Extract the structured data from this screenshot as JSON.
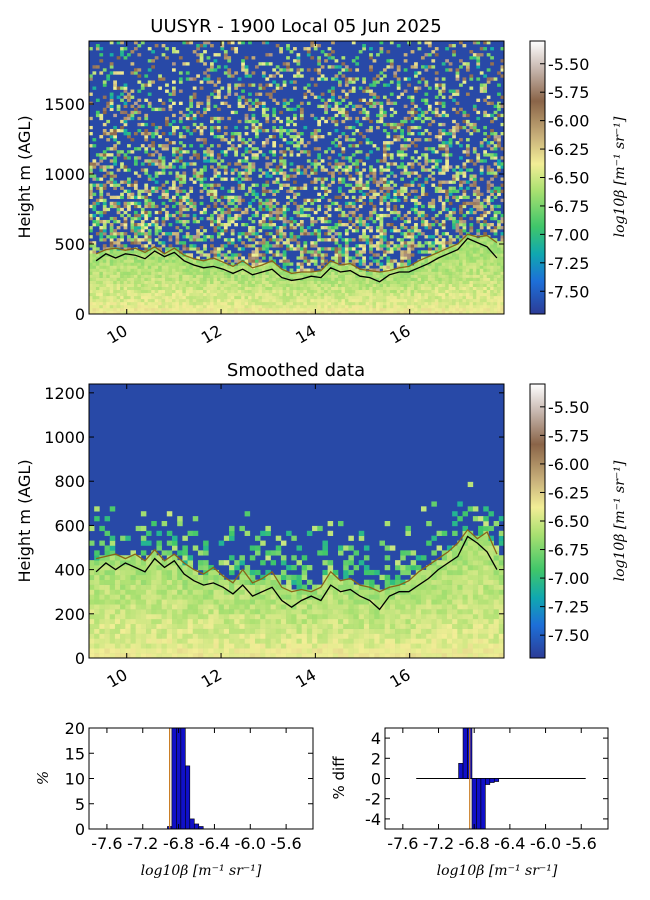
{
  "chart_data": [
    {
      "type": "heatmap",
      "title": "UUSYR - 1900 Local 05 Jun 2025",
      "ylabel": "Height m (AGL)",
      "xlim": [
        9.2,
        18.0
      ],
      "ylim": [
        0,
        1950
      ],
      "x_ticks": [
        "10",
        "12",
        "14",
        "16"
      ],
      "y_ticks": [
        "0",
        "500",
        "1000",
        "1500"
      ],
      "colorbar": {
        "label": "log10β [m⁻¹ sr⁻¹]",
        "range": [
          -7.7,
          -5.3
        ],
        "ticks": [
          "-5.50",
          "-5.75",
          "-6.00",
          "-6.25",
          "-6.50",
          "-6.75",
          "-7.00",
          "-7.25",
          "-7.50"
        ]
      },
      "series": [
        {
          "values": [
            430,
            460,
            470,
            455,
            470,
            440,
            480,
            430,
            470,
            420,
            395,
            380,
            400,
            370,
            340,
            380,
            330,
            350,
            380,
            320,
            290,
            300,
            300,
            310,
            380,
            350,
            360,
            320,
            310,
            300,
            310,
            330,
            340,
            380,
            410,
            440,
            470,
            500,
            570,
            550,
            560,
            510
          ]
        },
        {
          "values": [
            380,
            430,
            400,
            430,
            420,
            395,
            450,
            410,
            440,
            380,
            350,
            330,
            340,
            320,
            290,
            320,
            280,
            300,
            320,
            260,
            240,
            250,
            270,
            260,
            330,
            300,
            310,
            270,
            260,
            230,
            280,
            300,
            300,
            330,
            360,
            400,
            430,
            460,
            540,
            510,
            480,
            400
          ]
        }
      ]
    },
    {
      "type": "heatmap",
      "title": "Smoothed data",
      "ylabel": "Height m (AGL)",
      "xlim": [
        9.2,
        18.0
      ],
      "ylim": [
        0,
        1240
      ],
      "x_ticks": [
        "10",
        "12",
        "14",
        "16"
      ],
      "y_ticks": [
        "0",
        "200",
        "400",
        "600",
        "800",
        "1000",
        "1200"
      ],
      "colorbar": {
        "label": "log10β [m⁻¹ sr⁻¹]",
        "range": [
          -7.7,
          -5.3
        ],
        "ticks": [
          "-5.50",
          "-5.75",
          "-6.00",
          "-6.25",
          "-6.50",
          "-6.75",
          "-7.00",
          "-7.25",
          "-7.50"
        ]
      },
      "series": [
        {
          "values": [
            450,
            460,
            470,
            450,
            470,
            440,
            490,
            440,
            470,
            430,
            400,
            380,
            410,
            370,
            340,
            400,
            340,
            360,
            390,
            320,
            300,
            310,
            300,
            320,
            390,
            350,
            360,
            330,
            320,
            300,
            320,
            330,
            350,
            390,
            420,
            450,
            480,
            520,
            580,
            540,
            570,
            470
          ]
        },
        {
          "values": [
            390,
            430,
            400,
            430,
            410,
            390,
            450,
            410,
            440,
            380,
            350,
            330,
            340,
            320,
            290,
            330,
            280,
            300,
            320,
            260,
            230,
            260,
            280,
            260,
            330,
            300,
            310,
            280,
            260,
            220,
            280,
            300,
            300,
            330,
            360,
            400,
            430,
            460,
            550,
            520,
            480,
            400
          ]
        }
      ]
    },
    {
      "type": "bar",
      "ylabel": "%",
      "xlabel": "log10β [m⁻¹ sr⁻¹]",
      "xlim": [
        -7.8,
        -5.3
      ],
      "ylim": [
        0,
        20
      ],
      "x_ticks": [
        "-7.6",
        "-7.2",
        "-6.8",
        "-6.4",
        "-6.0",
        "-5.6"
      ],
      "y_ticks": [
        "0",
        "5",
        "10",
        "15",
        "20"
      ],
      "bar_width": 0.05,
      "x": [
        -6.9,
        -6.85,
        -6.8,
        -6.75,
        -6.7,
        -6.65,
        -6.6,
        -6.55
      ],
      "values": [
        0.5,
        20,
        20,
        20,
        12.5,
        2.0,
        1.0,
        0.5
      ],
      "threshold": -6.9
    },
    {
      "type": "bar",
      "ylabel": "% diff",
      "xlabel": "log10β [m⁻¹ sr⁻¹]",
      "xlim": [
        -7.8,
        -5.3
      ],
      "ylim": [
        -5,
        5
      ],
      "x_ticks": [
        "-7.6",
        "-7.2",
        "-6.8",
        "-6.4",
        "-6.0",
        "-5.6"
      ],
      "y_ticks": [
        "-4",
        "-2",
        "0",
        "2",
        "4"
      ],
      "bar_width": 0.05,
      "x": [
        -6.95,
        -6.9,
        -6.85,
        -6.8,
        -6.75,
        -6.7,
        -6.65,
        -6.6,
        -6.55
      ],
      "values": [
        1.5,
        5,
        5,
        -5,
        -5,
        -5,
        -0.6,
        -0.4,
        -0.3
      ],
      "zero_line": [
        -7.45,
        -5.55
      ],
      "threshold": -6.85
    }
  ]
}
